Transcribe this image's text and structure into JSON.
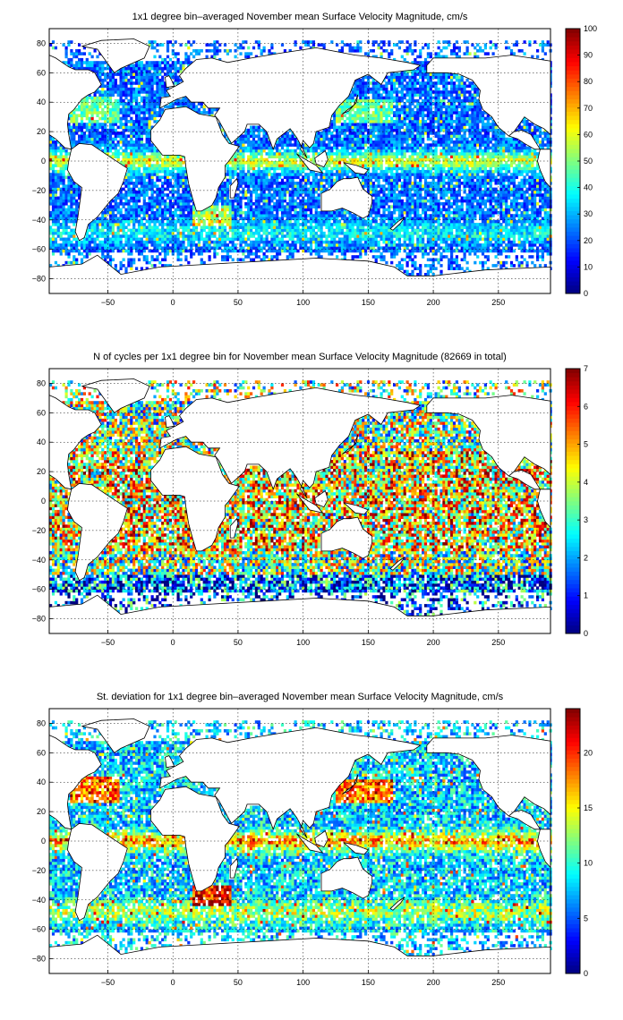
{
  "chart_data": [
    {
      "type": "heatmap",
      "title": "1x1 degree bin–averaged November mean Surface Velocity Magnitude, cm/s",
      "xlabel": "",
      "ylabel": "",
      "xlim": [
        -95,
        290
      ],
      "ylim": [
        -90,
        90
      ],
      "xticks": [
        -50,
        0,
        50,
        100,
        150,
        200,
        250
      ],
      "yticks": [
        -80,
        -60,
        -40,
        -20,
        0,
        20,
        40,
        60,
        80
      ],
      "colorbar": {
        "min": 0,
        "max": 100,
        "ticks": [
          0,
          10,
          20,
          30,
          40,
          50,
          60,
          70,
          80,
          90,
          100
        ],
        "colormap": "jet"
      },
      "grid": true,
      "field": "speed"
    },
    {
      "type": "heatmap",
      "title": "N of cycles per 1x1 degree bin for November mean Surface Velocity Magnitude (82669 in total)",
      "xlabel": "",
      "ylabel": "",
      "xlim": [
        -95,
        290
      ],
      "ylim": [
        -90,
        90
      ],
      "xticks": [
        -50,
        0,
        50,
        100,
        150,
        200,
        250
      ],
      "yticks": [
        -80,
        -60,
        -40,
        -20,
        0,
        20,
        40,
        60,
        80
      ],
      "colorbar": {
        "min": 0,
        "max": 7,
        "ticks": [
          0,
          1,
          2,
          3,
          4,
          5,
          6,
          7
        ],
        "colormap": "jet"
      },
      "grid": true,
      "field": "count"
    },
    {
      "type": "heatmap",
      "title": "St. deviation for 1x1 degree bin–averaged November mean Surface Velocity Magnitude, cm/s",
      "xlabel": "",
      "ylabel": "",
      "xlim": [
        -95,
        290
      ],
      "ylim": [
        -90,
        90
      ],
      "xticks": [
        -50,
        0,
        50,
        100,
        150,
        200,
        250
      ],
      "yticks": [
        -80,
        -60,
        -40,
        -20,
        0,
        20,
        40,
        60,
        80
      ],
      "colorbar": {
        "min": 0,
        "max": 24,
        "ticks": [
          0,
          5,
          10,
          15,
          20
        ],
        "colormap": "jet"
      },
      "grid": true,
      "field": "std"
    }
  ]
}
